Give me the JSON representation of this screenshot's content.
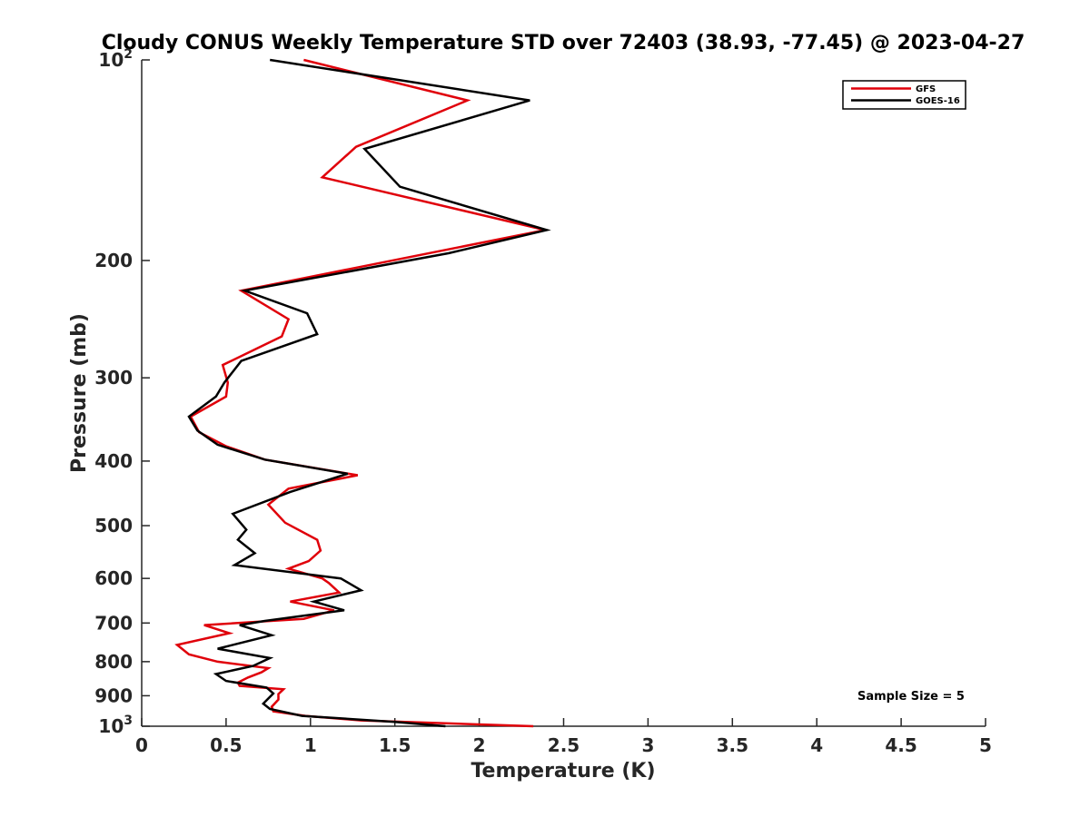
{
  "chart_data": {
    "type": "line",
    "title": "Cloudy CONUS Weekly Temperature STD over 72403 (38.93, -77.45) @ 2023-04-27",
    "xlabel": "Temperature (K)",
    "ylabel": "Pressure (mb)",
    "xlim": [
      0,
      5
    ],
    "ylim": [
      100,
      1000
    ],
    "y_scale": "log",
    "y_reversed": true,
    "grid": false,
    "legend_position": "top-right",
    "x_ticks": [
      0,
      0.5,
      1,
      1.5,
      2,
      2.5,
      3,
      3.5,
      4,
      4.5,
      5
    ],
    "x_tick_labels": [
      "0",
      "0.5",
      "1",
      "1.5",
      "2",
      "2.5",
      "3",
      "3.5",
      "4",
      "4.5",
      "5"
    ],
    "y_ticks": [
      100,
      200,
      300,
      400,
      500,
      600,
      700,
      800,
      900,
      1000
    ],
    "y_tick_labels": [
      {
        "base": "10",
        "exp": "2"
      },
      {
        "base": "200",
        "exp": ""
      },
      {
        "base": "300",
        "exp": ""
      },
      {
        "base": "400",
        "exp": ""
      },
      {
        "base": "500",
        "exp": ""
      },
      {
        "base": "600",
        "exp": ""
      },
      {
        "base": "700",
        "exp": ""
      },
      {
        "base": "800",
        "exp": ""
      },
      {
        "base": "900",
        "exp": ""
      },
      {
        "base": "10",
        "exp": "3"
      }
    ],
    "annotation": "Sample Size = 5",
    "series": [
      {
        "name": "GFS",
        "color": "#e0000a",
        "points": [
          [
            0.96,
            100
          ],
          [
            1.93,
            115
          ],
          [
            1.27,
            135
          ],
          [
            1.07,
            150
          ],
          [
            2.39,
            180
          ],
          [
            0.59,
            222
          ],
          [
            0.87,
            245
          ],
          [
            0.83,
            260
          ],
          [
            0.48,
            287
          ],
          [
            0.51,
            305
          ],
          [
            0.5,
            320
          ],
          [
            0.29,
            343
          ],
          [
            0.34,
            362
          ],
          [
            0.5,
            380
          ],
          [
            0.73,
            398
          ],
          [
            1.28,
            420
          ],
          [
            0.87,
            440
          ],
          [
            0.75,
            465
          ],
          [
            0.85,
            495
          ],
          [
            1.04,
            525
          ],
          [
            1.06,
            545
          ],
          [
            0.99,
            565
          ],
          [
            0.87,
            580
          ],
          [
            1.07,
            600
          ],
          [
            1.11,
            610
          ],
          [
            1.17,
            630
          ],
          [
            0.88,
            650
          ],
          [
            1.14,
            670
          ],
          [
            0.96,
            690
          ],
          [
            0.37,
            705
          ],
          [
            0.52,
            725
          ],
          [
            0.21,
            755
          ],
          [
            0.28,
            780
          ],
          [
            0.45,
            800
          ],
          [
            0.75,
            818
          ],
          [
            0.71,
            830
          ],
          [
            0.63,
            845
          ],
          [
            0.57,
            860
          ],
          [
            0.58,
            870
          ],
          [
            0.84,
            880
          ],
          [
            0.81,
            895
          ],
          [
            0.81,
            912
          ],
          [
            0.77,
            935
          ],
          [
            0.78,
            950
          ],
          [
            0.97,
            965
          ],
          [
            1.3,
            980
          ],
          [
            2.32,
            1000
          ]
        ]
      },
      {
        "name": "GOES-16",
        "color": "#000000",
        "points": [
          [
            0.76,
            100
          ],
          [
            2.3,
            115
          ],
          [
            1.32,
            136
          ],
          [
            1.53,
            155
          ],
          [
            2.4,
            180
          ],
          [
            1.82,
            195
          ],
          [
            0.61,
            222
          ],
          [
            0.98,
            240
          ],
          [
            1.04,
            258
          ],
          [
            0.59,
            283
          ],
          [
            0.49,
            305
          ],
          [
            0.44,
            320
          ],
          [
            0.28,
            343
          ],
          [
            0.33,
            360
          ],
          [
            0.45,
            378
          ],
          [
            0.73,
            398
          ],
          [
            1.22,
            418
          ],
          [
            0.88,
            445
          ],
          [
            0.54,
            480
          ],
          [
            0.62,
            507
          ],
          [
            0.57,
            525
          ],
          [
            0.67,
            550
          ],
          [
            0.55,
            573
          ],
          [
            1.18,
            600
          ],
          [
            1.3,
            625
          ],
          [
            1.02,
            650
          ],
          [
            1.2,
            670
          ],
          [
            0.73,
            695
          ],
          [
            0.58,
            705
          ],
          [
            0.77,
            730
          ],
          [
            0.45,
            765
          ],
          [
            0.76,
            790
          ],
          [
            0.66,
            812
          ],
          [
            0.44,
            835
          ],
          [
            0.5,
            855
          ],
          [
            0.74,
            875
          ],
          [
            0.78,
            893
          ],
          [
            0.72,
            925
          ],
          [
            0.76,
            942
          ],
          [
            0.95,
            965
          ],
          [
            1.5,
            985
          ],
          [
            1.8,
            1000
          ]
        ]
      }
    ]
  }
}
